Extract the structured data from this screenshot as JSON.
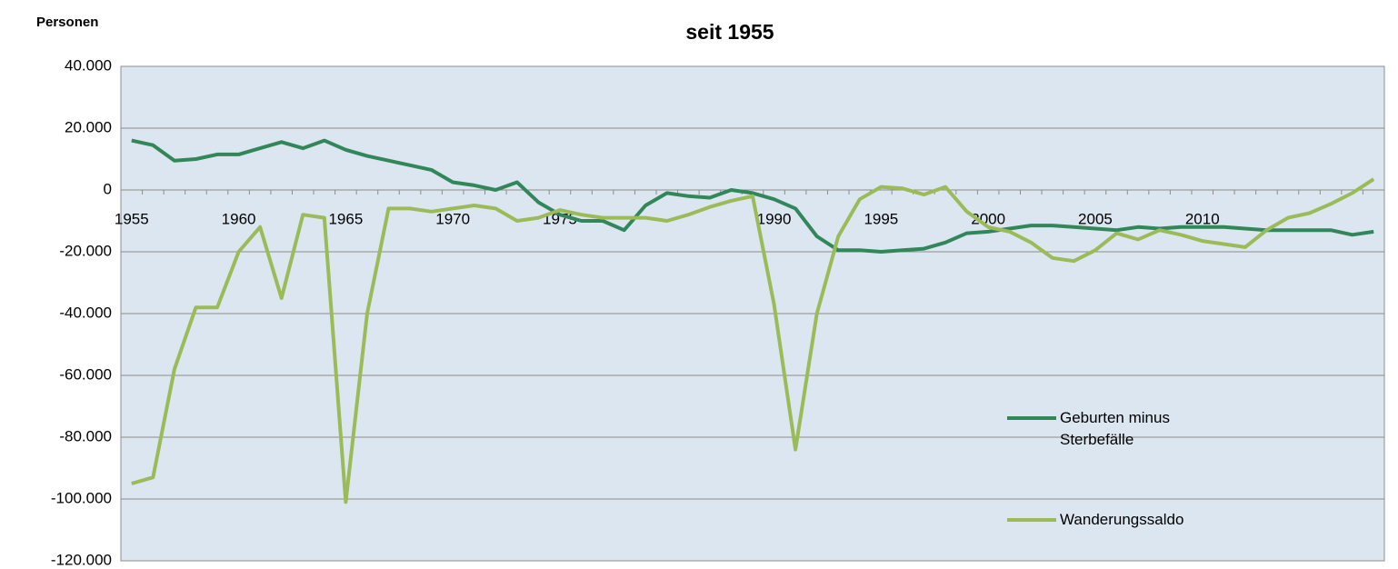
{
  "chart_data": {
    "type": "line",
    "title": "seit 1955",
    "y_axis_label": "Personen",
    "categories": [
      "1955",
      null,
      null,
      null,
      null,
      "1960",
      null,
      null,
      null,
      null,
      "1965",
      null,
      null,
      null,
      null,
      "1970",
      null,
      null,
      null,
      null,
      "1975",
      null,
      null,
      null,
      null,
      null,
      null,
      null,
      null,
      null,
      "1990",
      null,
      null,
      null,
      null,
      "1995",
      null,
      null,
      null,
      null,
      "2000",
      null,
      null,
      null,
      null,
      "2005",
      null,
      null,
      null,
      null,
      "2010",
      null,
      null,
      null,
      null,
      null,
      null,
      null,
      null
    ],
    "series": [
      {
        "name": "Geburten minus Sterbefälle",
        "color": "#31875a",
        "values": [
          16000,
          14500,
          9500,
          10000,
          11500,
          11500,
          13500,
          15500,
          13500,
          16000,
          13000,
          11000,
          9500,
          8000,
          6500,
          2500,
          1500,
          0,
          2500,
          -4000,
          -8000,
          -10000,
          -10000,
          -13000,
          -5000,
          -1000,
          -2000,
          -2500,
          0,
          -1000,
          -3000,
          -6000,
          -15000,
          -19500,
          -19500,
          -20000,
          -19500,
          -19000,
          -17000,
          -14000,
          -13500,
          -12500,
          -11500,
          -11500,
          -12000,
          -12500,
          -13000,
          -12000,
          -12500,
          -12000,
          -12000,
          -12000,
          -12500,
          -13000,
          -13000,
          -13000,
          -13000,
          -14500,
          -13500
        ]
      },
      {
        "name": "Wanderungssaldo",
        "color": "#9bbb59",
        "values": [
          -95000,
          -93000,
          -58000,
          -38000,
          -38000,
          -20000,
          -12000,
          -35000,
          -8000,
          -9000,
          -101000,
          -40000,
          -6000,
          -6000,
          -7000,
          -6000,
          -5000,
          -6000,
          -10000,
          -9000,
          -6500,
          -8000,
          -9000,
          -9000,
          -9000,
          -10000,
          -8000,
          -5500,
          -3500,
          -2000,
          -37000,
          -84000,
          -40000,
          -15000,
          -3000,
          1000,
          500,
          -1500,
          1000,
          -7000,
          -12000,
          -13500,
          -17000,
          -22000,
          -23000,
          -19500,
          -14000,
          -16000,
          -13000,
          -14500,
          -16500,
          -17500,
          -18500,
          -13000,
          -9000,
          -7500,
          -4500,
          -1000,
          3500
        ]
      }
    ],
    "ylim": [
      -120000,
      40000
    ],
    "yticks": [
      {
        "value": -120000,
        "label": "-120.000"
      },
      {
        "value": -100000,
        "label": "-100.000"
      },
      {
        "value": -80000,
        "label": "-80.000"
      },
      {
        "value": -60000,
        "label": "-60.000"
      },
      {
        "value": -40000,
        "label": "-40.000"
      },
      {
        "value": -20000,
        "label": "-20.000"
      },
      0,
      {
        "value": 20000,
        "label": "20.000"
      },
      {
        "value": 40000,
        "label": "40.000"
      }
    ],
    "grid": true
  }
}
